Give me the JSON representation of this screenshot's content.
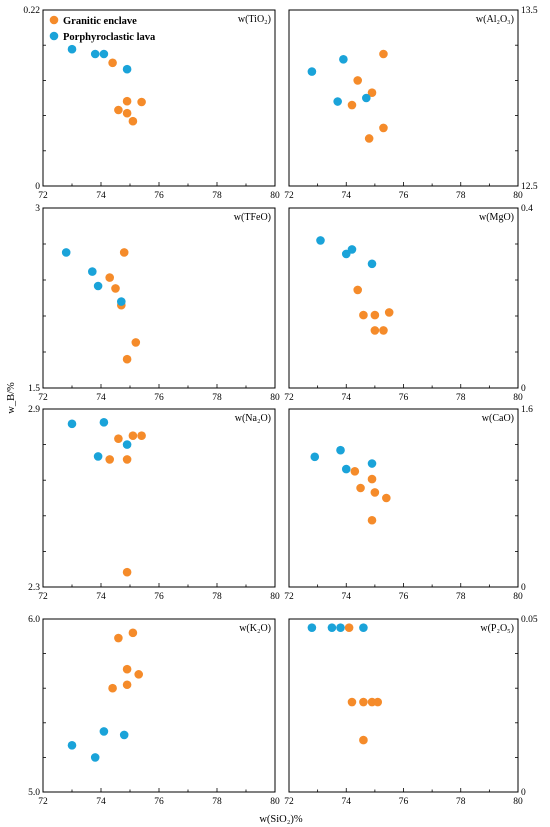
{
  "figure": {
    "xlabel": "w(SiO₂)%",
    "ylabel": "w_B/%",
    "legend": [
      {
        "name": "Granitic enclave",
        "color": "#f58b2a"
      },
      {
        "name": "Porphyroclastic lava",
        "color": "#1aa3d9"
      }
    ]
  },
  "chart_data": [
    {
      "type": "scatter",
      "title": "w(TiO₂)",
      "xlim": [
        72,
        80
      ],
      "ylim": [
        0,
        0.22
      ],
      "xticks": [
        "72",
        "74",
        "76",
        "78",
        "80"
      ],
      "yticks": [
        "0",
        "0.22"
      ],
      "y_axis_side": "left",
      "series": [
        {
          "name": "Granitic enclave",
          "points": [
            [
              74.4,
              0.154
            ],
            [
              74.6,
              0.095
            ],
            [
              74.9,
              0.106
            ],
            [
              74.9,
              0.091
            ],
            [
              75.1,
              0.081
            ],
            [
              75.4,
              0.105
            ]
          ]
        },
        {
          "name": "Porphyroclastic lava",
          "points": [
            [
              73.0,
              0.171
            ],
            [
              73.8,
              0.165
            ],
            [
              74.1,
              0.165
            ],
            [
              74.9,
              0.146
            ]
          ]
        }
      ]
    },
    {
      "type": "scatter",
      "title": "w(Al₂O₃)",
      "xlim": [
        72,
        80
      ],
      "ylim": [
        12.5,
        13.5
      ],
      "xticks": [
        "72",
        "74",
        "76",
        "78",
        "80"
      ],
      "yticks": [
        "12.5",
        "13.5"
      ],
      "y_axis_side": "right",
      "series": [
        {
          "name": "Granitic enclave",
          "points": [
            [
              74.4,
              13.1
            ],
            [
              74.9,
              13.03
            ],
            [
              75.3,
              13.25
            ],
            [
              74.2,
              12.96
            ],
            [
              75.3,
              12.83
            ],
            [
              74.8,
              12.77
            ]
          ]
        },
        {
          "name": "Porphyroclastic lava",
          "points": [
            [
              72.8,
              13.15
            ],
            [
              73.9,
              13.22
            ],
            [
              73.7,
              12.98
            ],
            [
              74.7,
              13.0
            ]
          ]
        }
      ]
    },
    {
      "type": "scatter",
      "title": "w(TFeO)",
      "xlim": [
        72,
        80
      ],
      "ylim": [
        1.5,
        3
      ],
      "xticks": [
        "72",
        "74",
        "76",
        "78",
        "80"
      ],
      "yticks": [
        "1.5",
        "3"
      ],
      "y_axis_side": "left",
      "series": [
        {
          "name": "Granitic enclave",
          "points": [
            [
              74.8,
              2.63
            ],
            [
              74.3,
              2.42
            ],
            [
              74.5,
              2.33
            ],
            [
              74.7,
              2.19
            ],
            [
              75.2,
              1.88
            ],
            [
              74.9,
              1.74
            ]
          ]
        },
        {
          "name": "Porphyroclastic lava",
          "points": [
            [
              72.8,
              2.63
            ],
            [
              73.7,
              2.47
            ],
            [
              73.9,
              2.35
            ],
            [
              74.7,
              2.22
            ]
          ]
        }
      ]
    },
    {
      "type": "scatter",
      "title": "w(MgO)",
      "xlim": [
        72,
        80
      ],
      "ylim": [
        0,
        0.4
      ],
      "xticks": [
        "72",
        "74",
        "76",
        "78",
        "80"
      ],
      "yticks": [
        "0",
        "0.4"
      ],
      "y_axis_side": "right",
      "series": [
        {
          "name": "Granitic enclave",
          "points": [
            [
              74.4,
              0.218
            ],
            [
              74.6,
              0.162
            ],
            [
              75.0,
              0.162
            ],
            [
              75.5,
              0.168
            ],
            [
              75.0,
              0.128
            ],
            [
              75.3,
              0.128
            ]
          ]
        },
        {
          "name": "Porphyroclastic lava",
          "points": [
            [
              73.1,
              0.328
            ],
            [
              74.2,
              0.308
            ],
            [
              74.0,
              0.298
            ],
            [
              74.9,
              0.276
            ]
          ]
        }
      ]
    },
    {
      "type": "scatter",
      "title": "w(Na₂O)",
      "xlim": [
        72,
        80
      ],
      "ylim": [
        2.3,
        2.9
      ],
      "xticks": [
        "72",
        "74",
        "76",
        "78",
        "80"
      ],
      "yticks": [
        "2.3",
        "2.9"
      ],
      "y_axis_side": "left",
      "series": [
        {
          "name": "Granitic enclave",
          "points": [
            [
              74.6,
              2.8
            ],
            [
              75.1,
              2.81
            ],
            [
              75.4,
              2.81
            ],
            [
              74.3,
              2.73
            ],
            [
              74.9,
              2.73
            ],
            [
              74.9,
              2.35
            ]
          ]
        },
        {
          "name": "Porphyroclastic lava",
          "points": [
            [
              73.0,
              2.85
            ],
            [
              74.1,
              2.855
            ],
            [
              73.9,
              2.74
            ],
            [
              74.9,
              2.78
            ]
          ]
        }
      ]
    },
    {
      "type": "scatter",
      "title": "w(CaO)",
      "xlim": [
        72,
        80
      ],
      "ylim": [
        0,
        1.6
      ],
      "xticks": [
        "72",
        "74",
        "76",
        "78",
        "80"
      ],
      "yticks": [
        "0",
        "1.6"
      ],
      "y_axis_side": "right",
      "series": [
        {
          "name": "Granitic enclave",
          "points": [
            [
              74.3,
              1.04
            ],
            [
              74.9,
              0.97
            ],
            [
              74.5,
              0.89
            ],
            [
              75.0,
              0.85
            ],
            [
              75.4,
              0.8
            ],
            [
              74.9,
              0.6
            ]
          ]
        },
        {
          "name": "Porphyroclastic lava",
          "points": [
            [
              72.9,
              1.17
            ],
            [
              73.8,
              1.23
            ],
            [
              74.0,
              1.06
            ],
            [
              74.9,
              1.11
            ]
          ]
        }
      ]
    },
    {
      "type": "scatter",
      "title": "w(K₂O)",
      "xlim": [
        72,
        80
      ],
      "ylim": [
        5.0,
        6.0
      ],
      "xticks": [
        "72",
        "74",
        "76",
        "78",
        "80"
      ],
      "yticks": [
        "5.0",
        "6.0"
      ],
      "y_axis_side": "left",
      "series": [
        {
          "name": "Granitic enclave",
          "points": [
            [
              75.1,
              5.92
            ],
            [
              74.6,
              5.89
            ],
            [
              74.9,
              5.71
            ],
            [
              75.3,
              5.68
            ],
            [
              74.9,
              5.62
            ],
            [
              74.4,
              5.6
            ]
          ]
        },
        {
          "name": "Porphyroclastic lava",
          "points": [
            [
              73.0,
              5.27
            ],
            [
              74.1,
              5.35
            ],
            [
              74.8,
              5.33
            ],
            [
              73.8,
              5.2
            ]
          ]
        }
      ]
    },
    {
      "type": "scatter",
      "title": "w(P₂O₅)",
      "xlim": [
        72,
        80
      ],
      "ylim": [
        0,
        0.05
      ],
      "xticks": [
        "72",
        "74",
        "76",
        "78",
        "80"
      ],
      "yticks": [
        "0",
        "0.05"
      ],
      "y_axis_side": "right",
      "series": [
        {
          "name": "Granitic enclave",
          "points": [
            [
              74.1,
              0.0475
            ],
            [
              74.2,
              0.026
            ],
            [
              74.6,
              0.026
            ],
            [
              74.9,
              0.026
            ],
            [
              75.1,
              0.026
            ],
            [
              74.6,
              0.015
            ]
          ]
        },
        {
          "name": "Porphyroclastic lava",
          "points": [
            [
              72.8,
              0.0475
            ],
            [
              73.5,
              0.0475
            ],
            [
              73.8,
              0.0475
            ],
            [
              74.6,
              0.0475
            ]
          ]
        }
      ]
    }
  ]
}
